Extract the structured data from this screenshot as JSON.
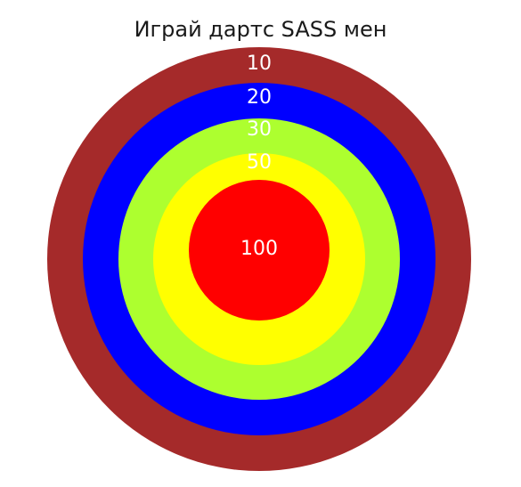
{
  "title": "Играй дартс SASS мен",
  "rings": [
    {
      "label": "10",
      "color": "#a52a2a"
    },
    {
      "label": "20",
      "color": "#0000ff"
    },
    {
      "label": "30",
      "color": "#adff2f"
    },
    {
      "label": "50",
      "color": "#ffff00"
    },
    {
      "label": "100",
      "color": "#ff0000"
    }
  ]
}
